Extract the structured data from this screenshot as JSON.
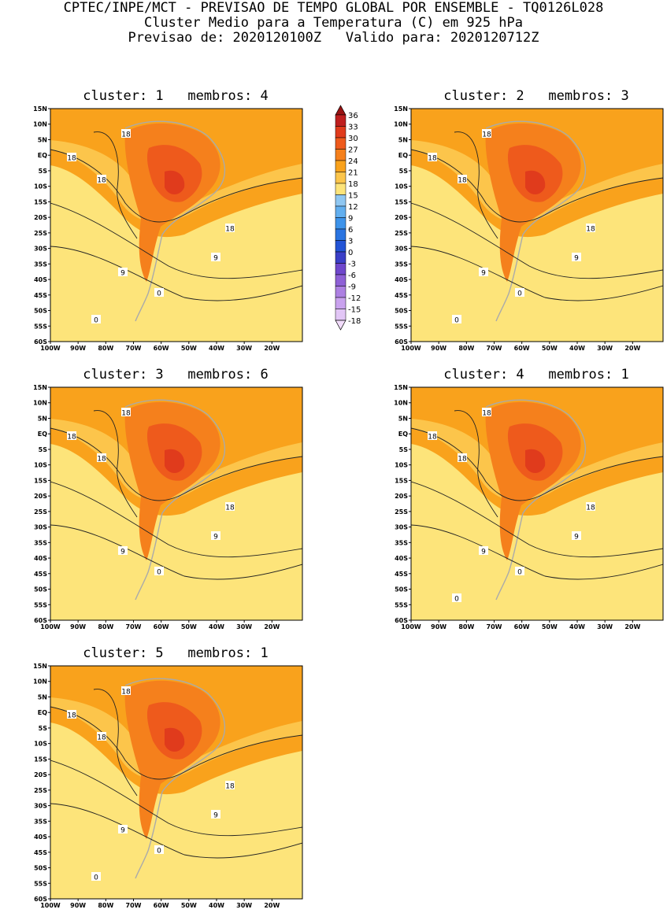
{
  "header": {
    "line1": "CPTEC/INPE/MCT - PREVISAO DE TEMPO GLOBAL POR ENSEMBLE - TQ0126L028",
    "line2": "Cluster Medio para a Temperatura (C) em 925 hPa",
    "line3": "Previsao de: 2020120100Z   Valido para: 2020120712Z"
  },
  "lat_ticks": [
    "15N",
    "10N",
    "5N",
    "EQ",
    "5S",
    "10S",
    "15S",
    "20S",
    "25S",
    "30S",
    "35S",
    "40S",
    "45S",
    "50S",
    "55S",
    "60S"
  ],
  "lon_ticks": [
    "100W",
    "90W",
    "80W",
    "70W",
    "60W",
    "50W",
    "40W",
    "30W",
    "20W"
  ],
  "colorbar": {
    "labels": [
      "36",
      "33",
      "30",
      "27",
      "24",
      "21",
      "18",
      "15",
      "12",
      "9",
      "6",
      "3",
      "0",
      "-3",
      "-6",
      "-9",
      "-12",
      "-15",
      "-18"
    ],
    "colors": [
      "#f2dcfb",
      "#e2c6f6",
      "#c9a2ee",
      "#ad80e2",
      "#8e60d6",
      "#6f47cc",
      "#3b3fc7",
      "#2354d6",
      "#2a74e1",
      "#3d93ea",
      "#62afef",
      "#8fc7f2",
      "#fde47a",
      "#fcc54b",
      "#f9a21c",
      "#f5801c",
      "#ee5a1c",
      "#e03b1c",
      "#bf1f1f",
      "#981212"
    ]
  },
  "panels": [
    {
      "title": "cluster: 1   membros: 4",
      "labels": [
        "18",
        "18",
        "18",
        "18",
        "9",
        "9",
        "0",
        "0"
      ]
    },
    {
      "title": "cluster: 2   membros: 3",
      "labels": [
        "18",
        "18",
        "18",
        "18",
        "9",
        "9",
        "0",
        "0"
      ]
    },
    {
      "title": "cluster: 3   membros: 6",
      "labels": [
        "18",
        "18",
        "18",
        "18",
        "9",
        "9",
        "0"
      ]
    },
    {
      "title": "cluster: 4   membros: 1",
      "labels": [
        "18",
        "18",
        "18",
        "18",
        "9",
        "9",
        "0",
        "0"
      ]
    },
    {
      "title": "cluster: 5   membros: 1",
      "labels": [
        "18",
        "18",
        "18",
        "18",
        "9",
        "9",
        "0",
        "0"
      ]
    }
  ]
}
